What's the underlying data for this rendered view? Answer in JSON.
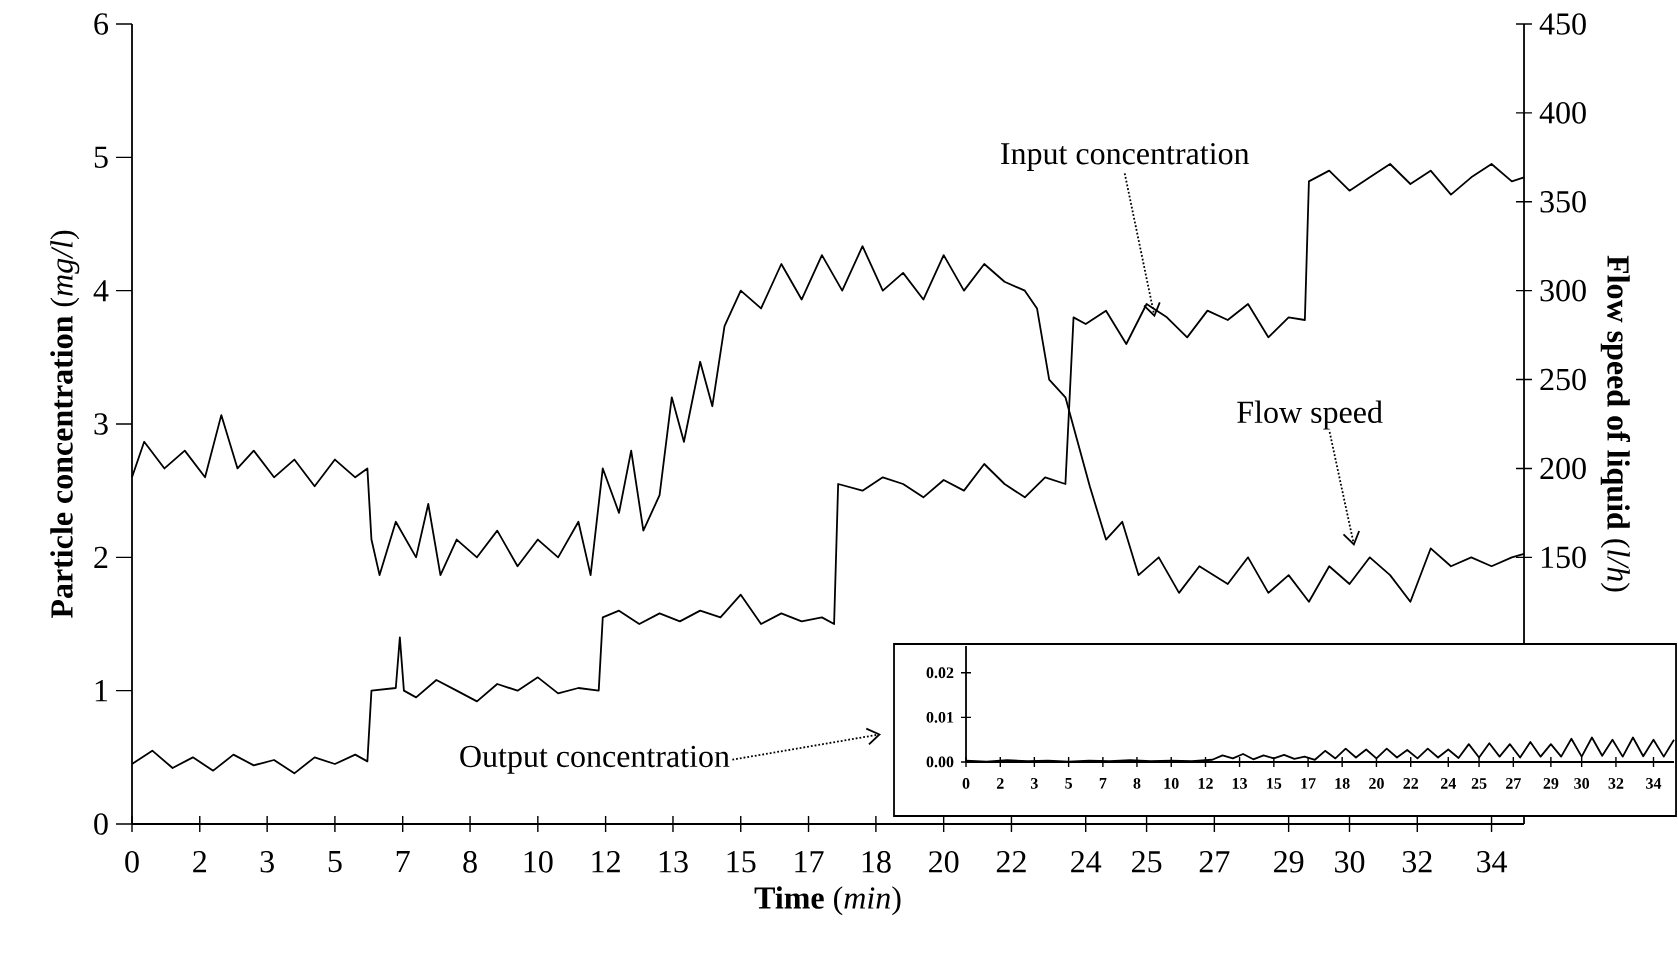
{
  "chart_data": [
    {
      "type": "line",
      "xlabel": "**Time** (*min*)",
      "ylabel": "**Particle concentration** (*mg/l*)",
      "y2label": "**Flow speed of liquid** (*l/h*)",
      "xlim": [
        0,
        34.3
      ],
      "ylim": [
        0,
        6
      ],
      "y2lim": [
        0,
        450
      ],
      "xticks": [
        0,
        {
          "value": 1.67,
          "label": "2"
        },
        {
          "value": 3.33,
          "label": "3"
        },
        5,
        {
          "value": 6.67,
          "label": "7"
        },
        {
          "value": 8.33,
          "label": "8"
        },
        10,
        {
          "value": 11.67,
          "label": "12"
        },
        {
          "value": 13.33,
          "label": "13"
        },
        15,
        {
          "value": 16.67,
          "label": "17"
        },
        {
          "value": 18.33,
          "label": "18"
        },
        20,
        {
          "value": 21.67,
          "label": "22"
        },
        {
          "value": 23.5,
          "label": "24"
        },
        25,
        {
          "value": 26.67,
          "label": "27"
        },
        {
          "value": 28.5,
          "label": "29"
        },
        30,
        {
          "value": 31.67,
          "label": "32"
        },
        {
          "value": 33.5,
          "label": "34"
        }
      ],
      "yticks": [
        0,
        1,
        2,
        3,
        4,
        5,
        6
      ],
      "y2ticks": [
        150,
        200,
        250,
        300,
        350,
        400,
        450
      ],
      "series": [
        {
          "color": "#000000",
          "x": [
            0,
            0.5,
            1,
            1.5,
            2,
            2.5,
            3,
            3.5,
            4,
            4.5,
            5,
            5.5,
            5.8,
            5.9,
            6.5,
            6.6,
            6.7,
            7,
            7.5,
            8,
            8.5,
            9,
            9.5,
            10,
            10.5,
            11,
            11.5,
            11.6,
            12,
            12.5,
            13,
            13.5,
            14,
            14.5,
            15,
            15.5,
            16,
            16.5,
            17,
            17.3,
            17.4,
            18,
            18.5,
            19,
            19.5,
            20,
            20.5,
            21,
            21.5,
            22,
            22.5,
            23,
            23.2,
            23.5,
            24,
            24.5,
            25,
            25.5,
            26,
            26.5,
            27,
            27.5,
            28,
            28.5,
            28.9,
            29,
            29.5,
            30,
            30.5,
            31,
            31.5,
            32,
            32.5,
            33,
            33.5,
            34,
            34.3
          ],
          "values": [
            0.45,
            0.55,
            0.42,
            0.5,
            0.4,
            0.52,
            0.44,
            0.48,
            0.38,
            0.5,
            0.45,
            0.52,
            0.47,
            1.0,
            1.02,
            1.4,
            1.0,
            0.95,
            1.08,
            1.0,
            0.92,
            1.05,
            1.0,
            1.1,
            0.98,
            1.02,
            1.0,
            1.55,
            1.6,
            1.5,
            1.58,
            1.52,
            1.6,
            1.55,
            1.72,
            1.5,
            1.58,
            1.52,
            1.55,
            1.5,
            2.55,
            2.5,
            2.6,
            2.55,
            2.45,
            2.58,
            2.5,
            2.7,
            2.55,
            2.45,
            2.6,
            2.55,
            3.8,
            3.75,
            3.85,
            3.6,
            3.9,
            3.8,
            3.65,
            3.85,
            3.78,
            3.9,
            3.65,
            3.8,
            3.78,
            4.82,
            4.9,
            4.75,
            4.85,
            4.95,
            4.8,
            4.9,
            4.72,
            4.85,
            4.95,
            4.82,
            4.85
          ]
        },
        {
          "color": "#000000",
          "axis": "y2",
          "x": [
            0,
            0.3,
            0.8,
            1.3,
            1.8,
            2.2,
            2.6,
            3,
            3.5,
            4,
            4.5,
            5,
            5.5,
            5.8,
            5.9,
            6.1,
            6.5,
            7,
            7.3,
            7.6,
            8,
            8.5,
            9,
            9.5,
            10,
            10.5,
            11,
            11.3,
            11.6,
            12,
            12.3,
            12.6,
            13,
            13.3,
            13.6,
            14,
            14.3,
            14.6,
            15,
            15.5,
            16,
            16.5,
            17,
            17.5,
            18,
            18.5,
            19,
            19.5,
            20,
            20.5,
            21,
            21.5,
            22,
            22.3,
            22.6,
            23,
            23.3,
            23.6,
            24,
            24.4,
            24.8,
            25.3,
            25.8,
            26.3,
            27,
            27.5,
            28,
            28.5,
            29,
            29.5,
            30,
            30.5,
            31,
            31.5,
            32,
            32.5,
            33,
            33.5,
            34,
            34.3
          ],
          "values": [
            195,
            215,
            200,
            210,
            195,
            230,
            200,
            210,
            195,
            205,
            190,
            205,
            195,
            200,
            160,
            140,
            170,
            150,
            180,
            140,
            160,
            150,
            165,
            145,
            160,
            150,
            170,
            140,
            200,
            175,
            210,
            165,
            185,
            240,
            215,
            260,
            235,
            280,
            300,
            290,
            315,
            295,
            320,
            300,
            325,
            300,
            310,
            295,
            320,
            300,
            315,
            305,
            300,
            290,
            250,
            240,
            215,
            190,
            160,
            170,
            140,
            150,
            130,
            145,
            135,
            150,
            130,
            140,
            125,
            145,
            135,
            150,
            140,
            125,
            155,
            145,
            150,
            145,
            150,
            152
          ]
        }
      ],
      "annotations": [
        {
          "text": "Input concentration",
          "x": 25.2,
          "y": 3.8
        },
        "Flow speed"
      ]
    },
    {
      "type": "line",
      "xlim": [
        0,
        34.5
      ],
      "ylim": [
        0,
        0.026
      ],
      "xticks": [
        0,
        {
          "value": 1.67,
          "label": "2"
        },
        {
          "value": 3.33,
          "label": "3"
        },
        5,
        {
          "value": 6.67,
          "label": "7"
        },
        {
          "value": 8.33,
          "label": "8"
        },
        10,
        {
          "value": 11.67,
          "label": "12"
        },
        {
          "value": 13.33,
          "label": "13"
        },
        15,
        {
          "value": 16.67,
          "label": "17"
        },
        {
          "value": 18.33,
          "label": "18"
        },
        20,
        {
          "value": 21.67,
          "label": "22"
        },
        {
          "value": 23.5,
          "label": "24"
        },
        25,
        {
          "value": 26.67,
          "label": "27"
        },
        {
          "value": 28.5,
          "label": "29"
        },
        30,
        {
          "value": 31.67,
          "label": "32"
        },
        {
          "value": 33.5,
          "label": "34"
        }
      ],
      "yticks": [
        {
          "value": 0,
          "label": "0.00"
        },
        {
          "value": 0.01,
          "label": "0.01"
        },
        {
          "value": 0.02,
          "label": "0.02"
        }
      ],
      "color": "#000000",
      "x": [
        0,
        1,
        2,
        3,
        4,
        5,
        6,
        7,
        8,
        9,
        10,
        11,
        12,
        12.5,
        13,
        13.5,
        14,
        14.5,
        15,
        15.5,
        16,
        16.5,
        17,
        17.5,
        18,
        18.5,
        19,
        19.5,
        20,
        20.5,
        21,
        21.5,
        22,
        22.5,
        23,
        23.5,
        24,
        24.5,
        25,
        25.5,
        26,
        26.5,
        27,
        27.5,
        28,
        28.5,
        29,
        29.5,
        30,
        30.5,
        31,
        31.5,
        32,
        32.5,
        33,
        33.5,
        34,
        34.5
      ],
      "values": [
        0.0003,
        0.0001,
        0.0004,
        0.0002,
        0.0003,
        0.0001,
        0.0003,
        0.0002,
        0.0004,
        0.0002,
        0.0003,
        0.0002,
        0.0005,
        0.0015,
        0.0008,
        0.0018,
        0.0006,
        0.0015,
        0.0008,
        0.0016,
        0.0007,
        0.0012,
        0.0005,
        0.0025,
        0.0008,
        0.003,
        0.001,
        0.0028,
        0.0008,
        0.003,
        0.001,
        0.0027,
        0.0008,
        0.003,
        0.001,
        0.0028,
        0.0009,
        0.004,
        0.001,
        0.0042,
        0.0012,
        0.004,
        0.001,
        0.0045,
        0.0012,
        0.004,
        0.0012,
        0.0052,
        0.0012,
        0.0055,
        0.0014,
        0.005,
        0.0012,
        0.0055,
        0.0013,
        0.005,
        0.0012,
        0.005
      ],
      "annotations": [
        "Output concentration"
      ]
    }
  ]
}
